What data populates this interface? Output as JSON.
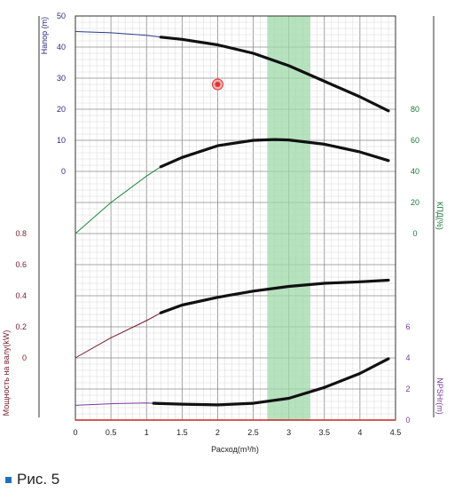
{
  "caption": "Рис. 5",
  "chart_data": {
    "type": "line",
    "xlabel": "Расход(m³/h)",
    "xlim": [
      0,
      4.5
    ],
    "x_ticks": [
      "0",
      "0.5",
      "1",
      "1.5",
      "2",
      "2.5",
      "3",
      "3.5",
      "4",
      "4.5"
    ],
    "grid": true,
    "highlight_band": {
      "x_range": [
        2.7,
        3.3
      ],
      "color": "#9fd8a8"
    },
    "operating_point": {
      "x": 2.0,
      "y": 28,
      "color": "#e03030"
    },
    "axes": {
      "head": {
        "label": "Напор (m)",
        "ticks": [
          "50",
          "40",
          "30",
          "20",
          "10",
          "0"
        ],
        "range": [
          0,
          50
        ],
        "color": "#2a2a8a",
        "side": "left"
      },
      "efficiency": {
        "label": "КПД(%)",
        "ticks": [
          "80",
          "60",
          "40",
          "20",
          "0"
        ],
        "range": [
          0,
          80
        ],
        "color": "#1a7a3a",
        "side": "right"
      },
      "power": {
        "label": "Мощность на валу(kW)",
        "ticks": [
          "0.8",
          "0.6",
          "0.4",
          "0.2",
          "0"
        ],
        "range": [
          0,
          0.8
        ],
        "color": "#7a1a2a",
        "side": "left"
      },
      "npsh": {
        "label": "NPSHr(m)",
        "ticks": [
          "6",
          "4",
          "2",
          "0"
        ],
        "range": [
          0,
          6
        ],
        "color": "#7a3aa0",
        "side": "right"
      }
    },
    "series": [
      {
        "axis": "head",
        "color": "#2a3a8a",
        "bold_from": 1.2,
        "x": [
          0,
          0.5,
          1.0,
          1.2,
          1.5,
          2.0,
          2.5,
          3.0,
          3.5,
          4.0,
          4.4
        ],
        "y": [
          45,
          44.6,
          43.8,
          43.2,
          42.5,
          40.7,
          38.0,
          34.0,
          29.0,
          24.0,
          19.5
        ]
      },
      {
        "axis": "efficiency",
        "color": "#1a8a3a",
        "bold_from": 1.2,
        "x": [
          0,
          0.5,
          1.0,
          1.2,
          1.5,
          2.0,
          2.5,
          2.8,
          3.0,
          3.5,
          4.0,
          4.4
        ],
        "y": [
          0,
          20,
          37,
          43,
          49,
          56.5,
          60,
          60.5,
          60.2,
          57.5,
          52.5,
          47
        ]
      },
      {
        "axis": "power",
        "color": "#7a1a2a",
        "bold_from": 1.2,
        "x": [
          0,
          0.5,
          1.0,
          1.2,
          1.5,
          2.0,
          2.5,
          3.0,
          3.5,
          4.0,
          4.4
        ],
        "y": [
          0,
          0.13,
          0.24,
          0.29,
          0.34,
          0.39,
          0.43,
          0.46,
          0.48,
          0.49,
          0.5
        ]
      },
      {
        "axis": "npsh",
        "color": "#7a3aa0",
        "bold_from": 1.1,
        "x": [
          0,
          0.5,
          1.0,
          1.1,
          1.5,
          2.0,
          2.5,
          3.0,
          3.5,
          4.0,
          4.4
        ],
        "y": [
          0.95,
          1.05,
          1.1,
          1.08,
          1.02,
          0.98,
          1.08,
          1.4,
          2.1,
          3.0,
          3.95
        ]
      },
      {
        "axis": "npsh",
        "color": "#cc2222",
        "bold_from": 99,
        "x": [
          0,
          4.5
        ],
        "y": [
          0,
          0
        ]
      }
    ]
  }
}
